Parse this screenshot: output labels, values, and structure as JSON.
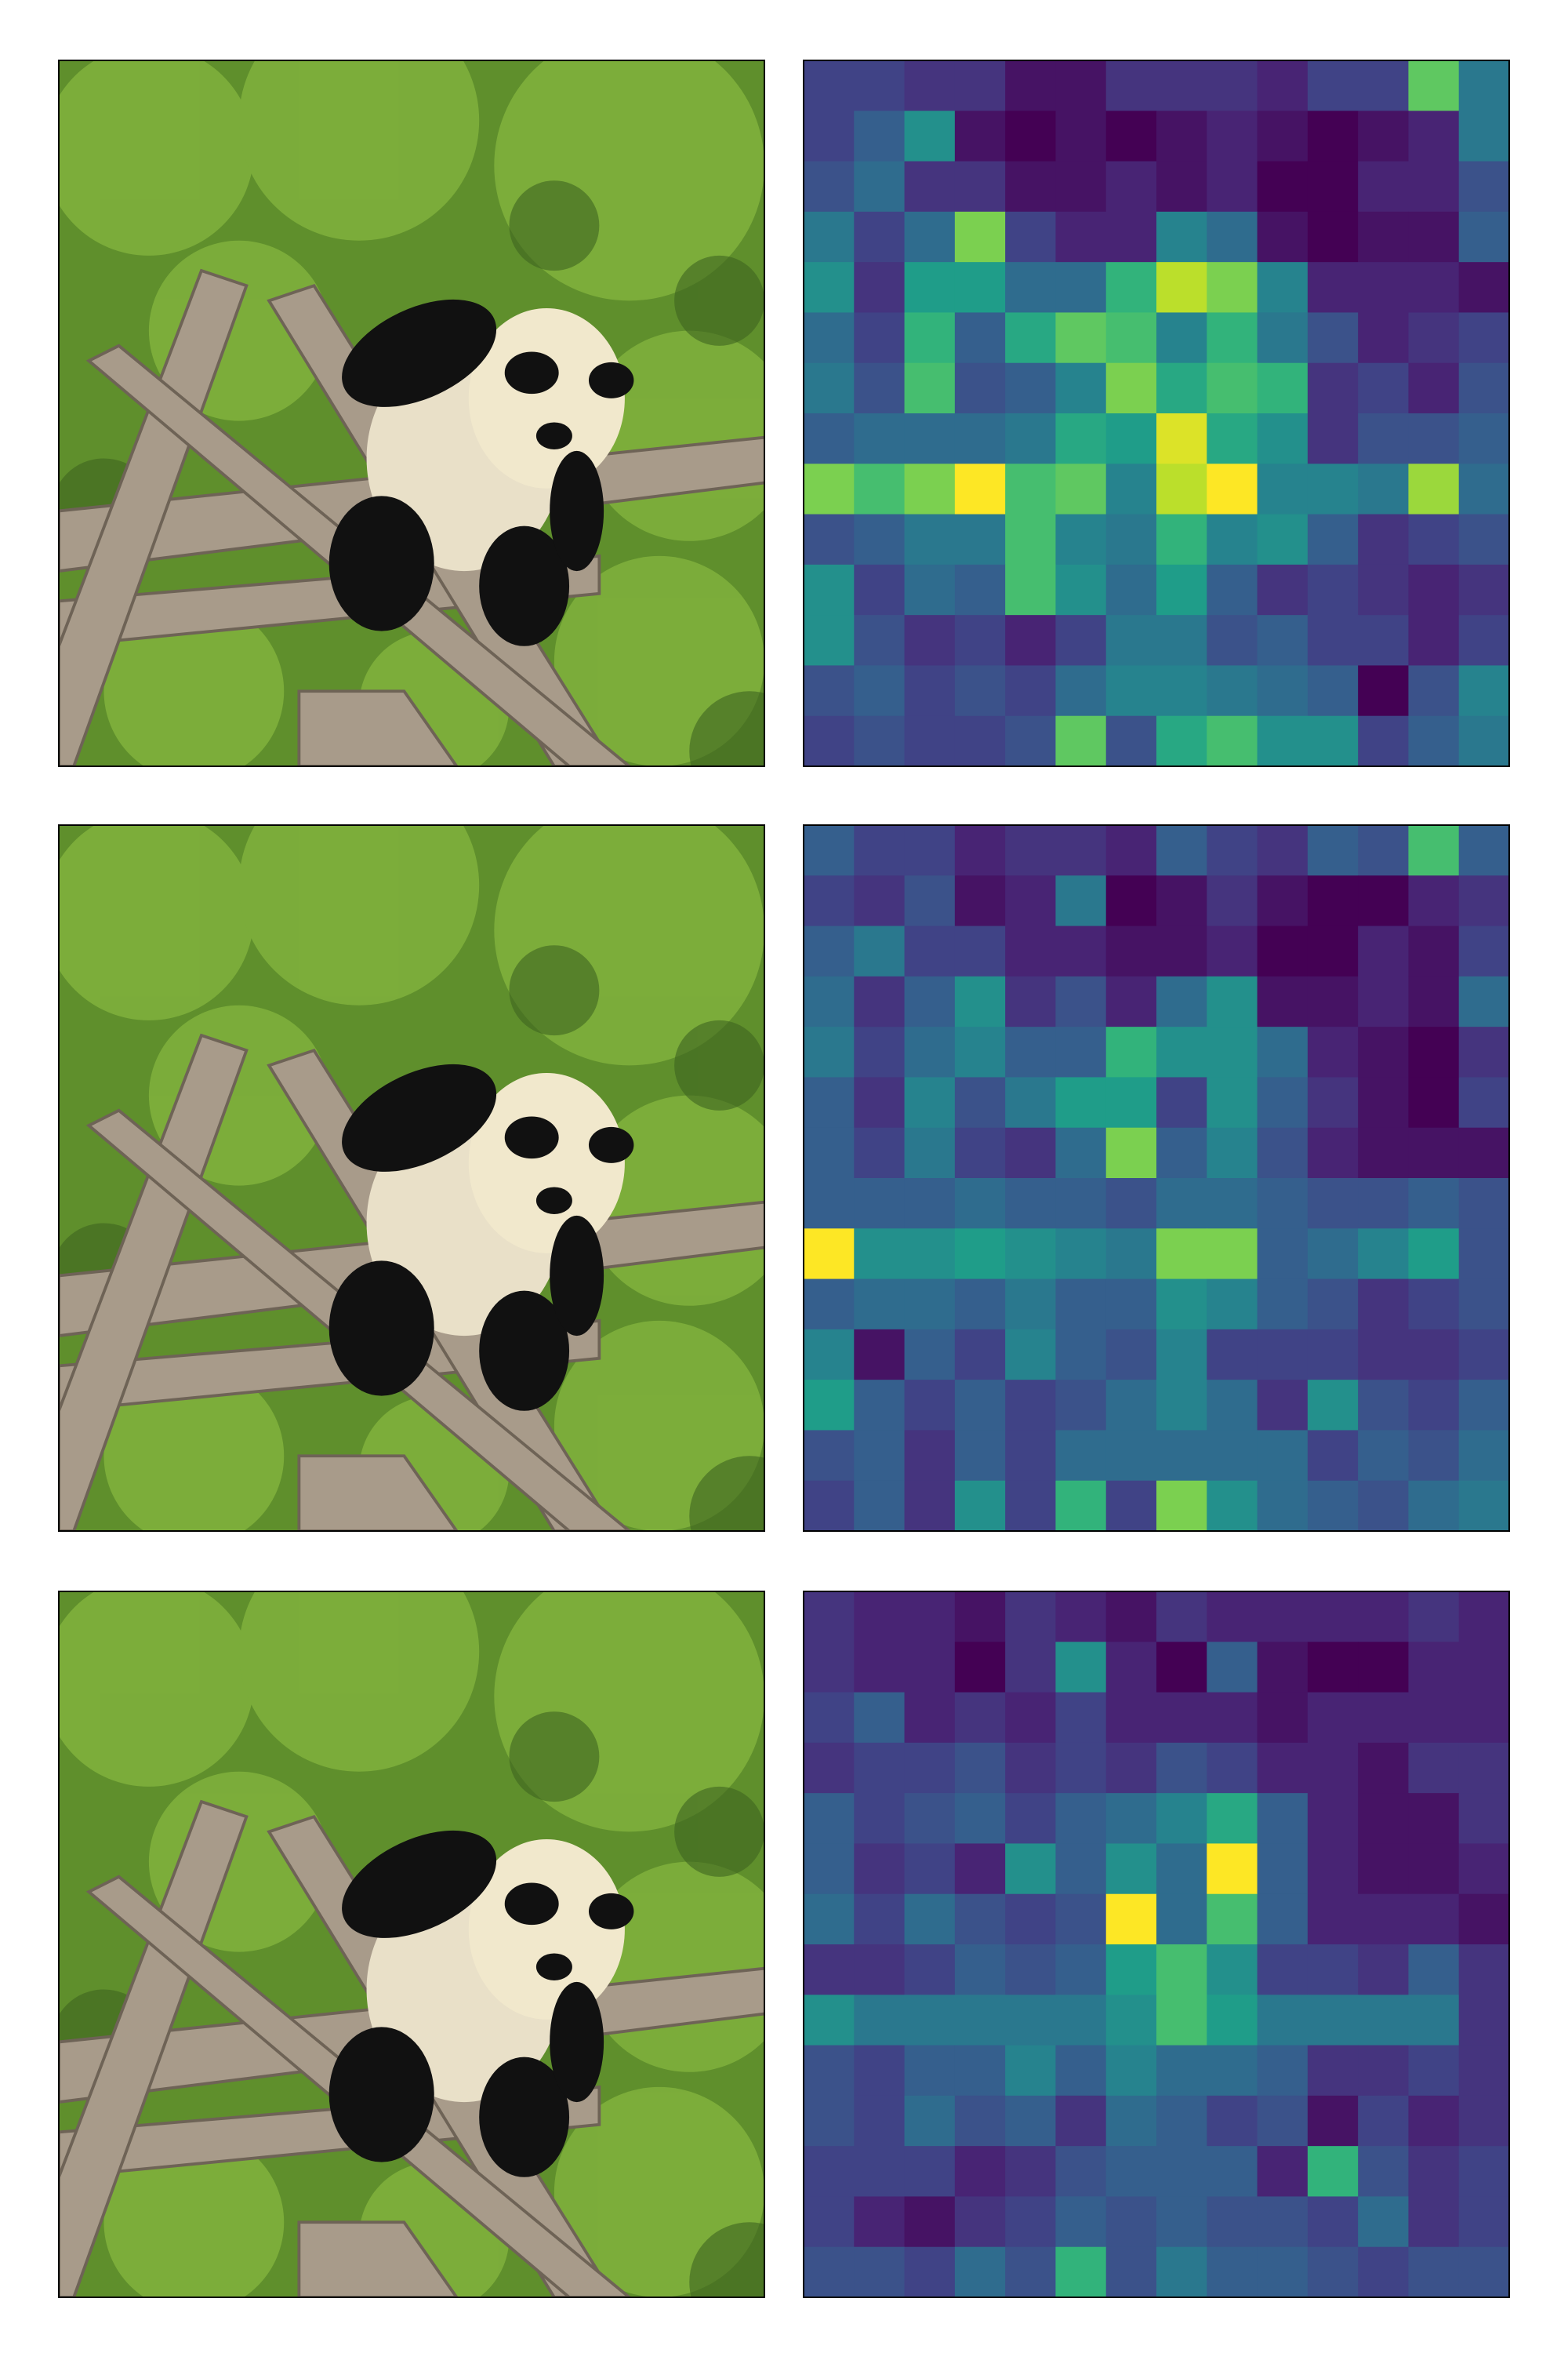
{
  "chart_data": [
    {
      "type": "heatmap",
      "values": [
        [
          0.2,
          0.2,
          0.15,
          0.15,
          0.05,
          0.05,
          0.15,
          0.15,
          0.15,
          0.1,
          0.2,
          0.2,
          0.75,
          0.4
        ],
        [
          0.2,
          0.3,
          0.5,
          0.05,
          0,
          0.05,
          0,
          0.05,
          0.1,
          0.05,
          0,
          0.05,
          0.1,
          0.4
        ],
        [
          0.25,
          0.35,
          0.15,
          0.15,
          0.05,
          0.05,
          0.1,
          0.05,
          0.1,
          0,
          0,
          0.1,
          0.1,
          0.25
        ],
        [
          0.4,
          0.2,
          0.35,
          0.8,
          0.2,
          0.1,
          0.1,
          0.45,
          0.35,
          0.05,
          0,
          0.05,
          0.05,
          0.3
        ],
        [
          0.5,
          0.15,
          0.55,
          0.55,
          0.35,
          0.35,
          0.65,
          0.9,
          0.8,
          0.45,
          0.1,
          0.1,
          0.1,
          0.05
        ],
        [
          0.35,
          0.2,
          0.65,
          0.3,
          0.6,
          0.75,
          0.7,
          0.45,
          0.65,
          0.4,
          0.25,
          0.1,
          0.15,
          0.2
        ],
        [
          0.4,
          0.25,
          0.7,
          0.25,
          0.3,
          0.45,
          0.8,
          0.6,
          0.7,
          0.65,
          0.15,
          0.2,
          0.1,
          0.25
        ],
        [
          0.3,
          0.35,
          0.35,
          0.35,
          0.4,
          0.6,
          0.55,
          0.95,
          0.6,
          0.5,
          0.15,
          0.25,
          0.25,
          0.3
        ],
        [
          0.8,
          0.7,
          0.8,
          1,
          0.7,
          0.75,
          0.45,
          0.9,
          1,
          0.45,
          0.45,
          0.4,
          0.85,
          0.35
        ],
        [
          0.25,
          0.3,
          0.4,
          0.4,
          0.7,
          0.45,
          0.4,
          0.65,
          0.45,
          0.5,
          0.3,
          0.15,
          0.2,
          0.25
        ],
        [
          0.5,
          0.2,
          0.35,
          0.3,
          0.7,
          0.5,
          0.35,
          0.55,
          0.3,
          0.15,
          0.2,
          0.15,
          0.1,
          0.15
        ],
        [
          0.5,
          0.25,
          0.15,
          0.2,
          0.1,
          0.2,
          0.4,
          0.4,
          0.25,
          0.3,
          0.2,
          0.2,
          0.1,
          0.2
        ],
        [
          0.25,
          0.3,
          0.2,
          0.25,
          0.2,
          0.35,
          0.45,
          0.45,
          0.4,
          0.35,
          0.3,
          0,
          0.25,
          0.45
        ],
        [
          0.2,
          0.25,
          0.2,
          0.2,
          0.25,
          0.75,
          0.25,
          0.6,
          0.7,
          0.5,
          0.5,
          0.2,
          0.3,
          0.4
        ]
      ]
    },
    {
      "type": "heatmap",
      "values": [
        [
          0.3,
          0.2,
          0.2,
          0.1,
          0.15,
          0.15,
          0.1,
          0.3,
          0.2,
          0.15,
          0.3,
          0.25,
          0.7,
          0.3
        ],
        [
          0.2,
          0.15,
          0.25,
          0.05,
          0.1,
          0.4,
          0,
          0.05,
          0.15,
          0.05,
          0,
          0,
          0.1,
          0.15
        ],
        [
          0.3,
          0.4,
          0.2,
          0.2,
          0.1,
          0.1,
          0.05,
          0.05,
          0.1,
          0,
          0,
          0.1,
          0.05,
          0.2
        ],
        [
          0.35,
          0.15,
          0.3,
          0.5,
          0.15,
          0.25,
          0.1,
          0.35,
          0.5,
          0.05,
          0.05,
          0.1,
          0.05,
          0.35
        ],
        [
          0.4,
          0.2,
          0.35,
          0.45,
          0.3,
          0.3,
          0.65,
          0.5,
          0.5,
          0.35,
          0.1,
          0.05,
          0,
          0.15
        ],
        [
          0.3,
          0.15,
          0.45,
          0.25,
          0.4,
          0.55,
          0.55,
          0.2,
          0.5,
          0.3,
          0.15,
          0.05,
          0,
          0.2
        ],
        [
          0.3,
          0.2,
          0.4,
          0.2,
          0.15,
          0.35,
          0.8,
          0.3,
          0.45,
          0.25,
          0.1,
          0.05,
          0.05,
          0.05
        ],
        [
          0.3,
          0.3,
          0.3,
          0.35,
          0.3,
          0.3,
          0.25,
          0.35,
          0.35,
          0.3,
          0.25,
          0.25,
          0.3,
          0.25
        ],
        [
          1,
          0.5,
          0.5,
          0.55,
          0.5,
          0.45,
          0.4,
          0.8,
          0.8,
          0.3,
          0.35,
          0.45,
          0.55,
          0.25
        ],
        [
          0.3,
          0.35,
          0.35,
          0.3,
          0.4,
          0.3,
          0.3,
          0.5,
          0.45,
          0.3,
          0.25,
          0.15,
          0.2,
          0.25
        ],
        [
          0.45,
          0.05,
          0.3,
          0.2,
          0.45,
          0.3,
          0.25,
          0.45,
          0.2,
          0.2,
          0.2,
          0.15,
          0.15,
          0.2
        ],
        [
          0.55,
          0.3,
          0.2,
          0.3,
          0.2,
          0.25,
          0.35,
          0.45,
          0.35,
          0.15,
          0.5,
          0.25,
          0.2,
          0.3
        ],
        [
          0.25,
          0.3,
          0.15,
          0.3,
          0.2,
          0.35,
          0.35,
          0.35,
          0.35,
          0.35,
          0.2,
          0.3,
          0.25,
          0.35
        ],
        [
          0.2,
          0.3,
          0.15,
          0.5,
          0.2,
          0.65,
          0.2,
          0.8,
          0.5,
          0.35,
          0.3,
          0.25,
          0.35,
          0.4
        ]
      ]
    },
    {
      "type": "heatmap",
      "values": [
        [
          0.15,
          0.1,
          0.1,
          0.05,
          0.15,
          0.1,
          0.05,
          0.15,
          0.1,
          0.1,
          0.1,
          0.1,
          0.15,
          0.1
        ],
        [
          0.15,
          0.1,
          0.1,
          0,
          0.15,
          0.5,
          0.1,
          0,
          0.3,
          0.05,
          0,
          0,
          0.1,
          0.1
        ],
        [
          0.2,
          0.3,
          0.1,
          0.15,
          0.1,
          0.2,
          0.1,
          0.1,
          0.1,
          0.05,
          0.1,
          0.1,
          0.1,
          0.1
        ],
        [
          0.15,
          0.2,
          0.2,
          0.25,
          0.15,
          0.2,
          0.15,
          0.25,
          0.2,
          0.1,
          0.1,
          0.05,
          0.15,
          0.15
        ],
        [
          0.3,
          0.2,
          0.25,
          0.3,
          0.2,
          0.3,
          0.35,
          0.45,
          0.6,
          0.3,
          0.1,
          0.05,
          0.05,
          0.15
        ],
        [
          0.3,
          0.15,
          0.2,
          0.1,
          0.5,
          0.3,
          0.5,
          0.35,
          1,
          0.3,
          0.1,
          0.05,
          0.05,
          0.1
        ],
        [
          0.35,
          0.2,
          0.35,
          0.25,
          0.2,
          0.25,
          1,
          0.35,
          0.7,
          0.3,
          0.1,
          0.1,
          0.1,
          0.05
        ],
        [
          0.15,
          0.15,
          0.2,
          0.3,
          0.25,
          0.3,
          0.55,
          0.7,
          0.5,
          0.2,
          0.2,
          0.15,
          0.3,
          0.15
        ],
        [
          0.5,
          0.4,
          0.4,
          0.4,
          0.4,
          0.4,
          0.5,
          0.7,
          0.55,
          0.4,
          0.4,
          0.4,
          0.4,
          0.15
        ],
        [
          0.25,
          0.2,
          0.3,
          0.3,
          0.45,
          0.3,
          0.45,
          0.35,
          0.35,
          0.3,
          0.15,
          0.15,
          0.2,
          0.15
        ],
        [
          0.25,
          0.2,
          0.35,
          0.25,
          0.3,
          0.15,
          0.35,
          0.3,
          0.2,
          0.25,
          0.05,
          0.2,
          0.1,
          0.15
        ],
        [
          0.2,
          0.2,
          0.2,
          0.1,
          0.15,
          0.25,
          0.3,
          0.3,
          0.3,
          0.1,
          0.65,
          0.25,
          0.15,
          0.2
        ],
        [
          0.2,
          0.1,
          0.05,
          0.15,
          0.2,
          0.3,
          0.25,
          0.3,
          0.25,
          0.25,
          0.2,
          0.35,
          0.15,
          0.2
        ],
        [
          0.25,
          0.25,
          0.2,
          0.35,
          0.25,
          0.65,
          0.25,
          0.4,
          0.3,
          0.3,
          0.25,
          0.2,
          0.25,
          0.25
        ]
      ]
    }
  ]
}
